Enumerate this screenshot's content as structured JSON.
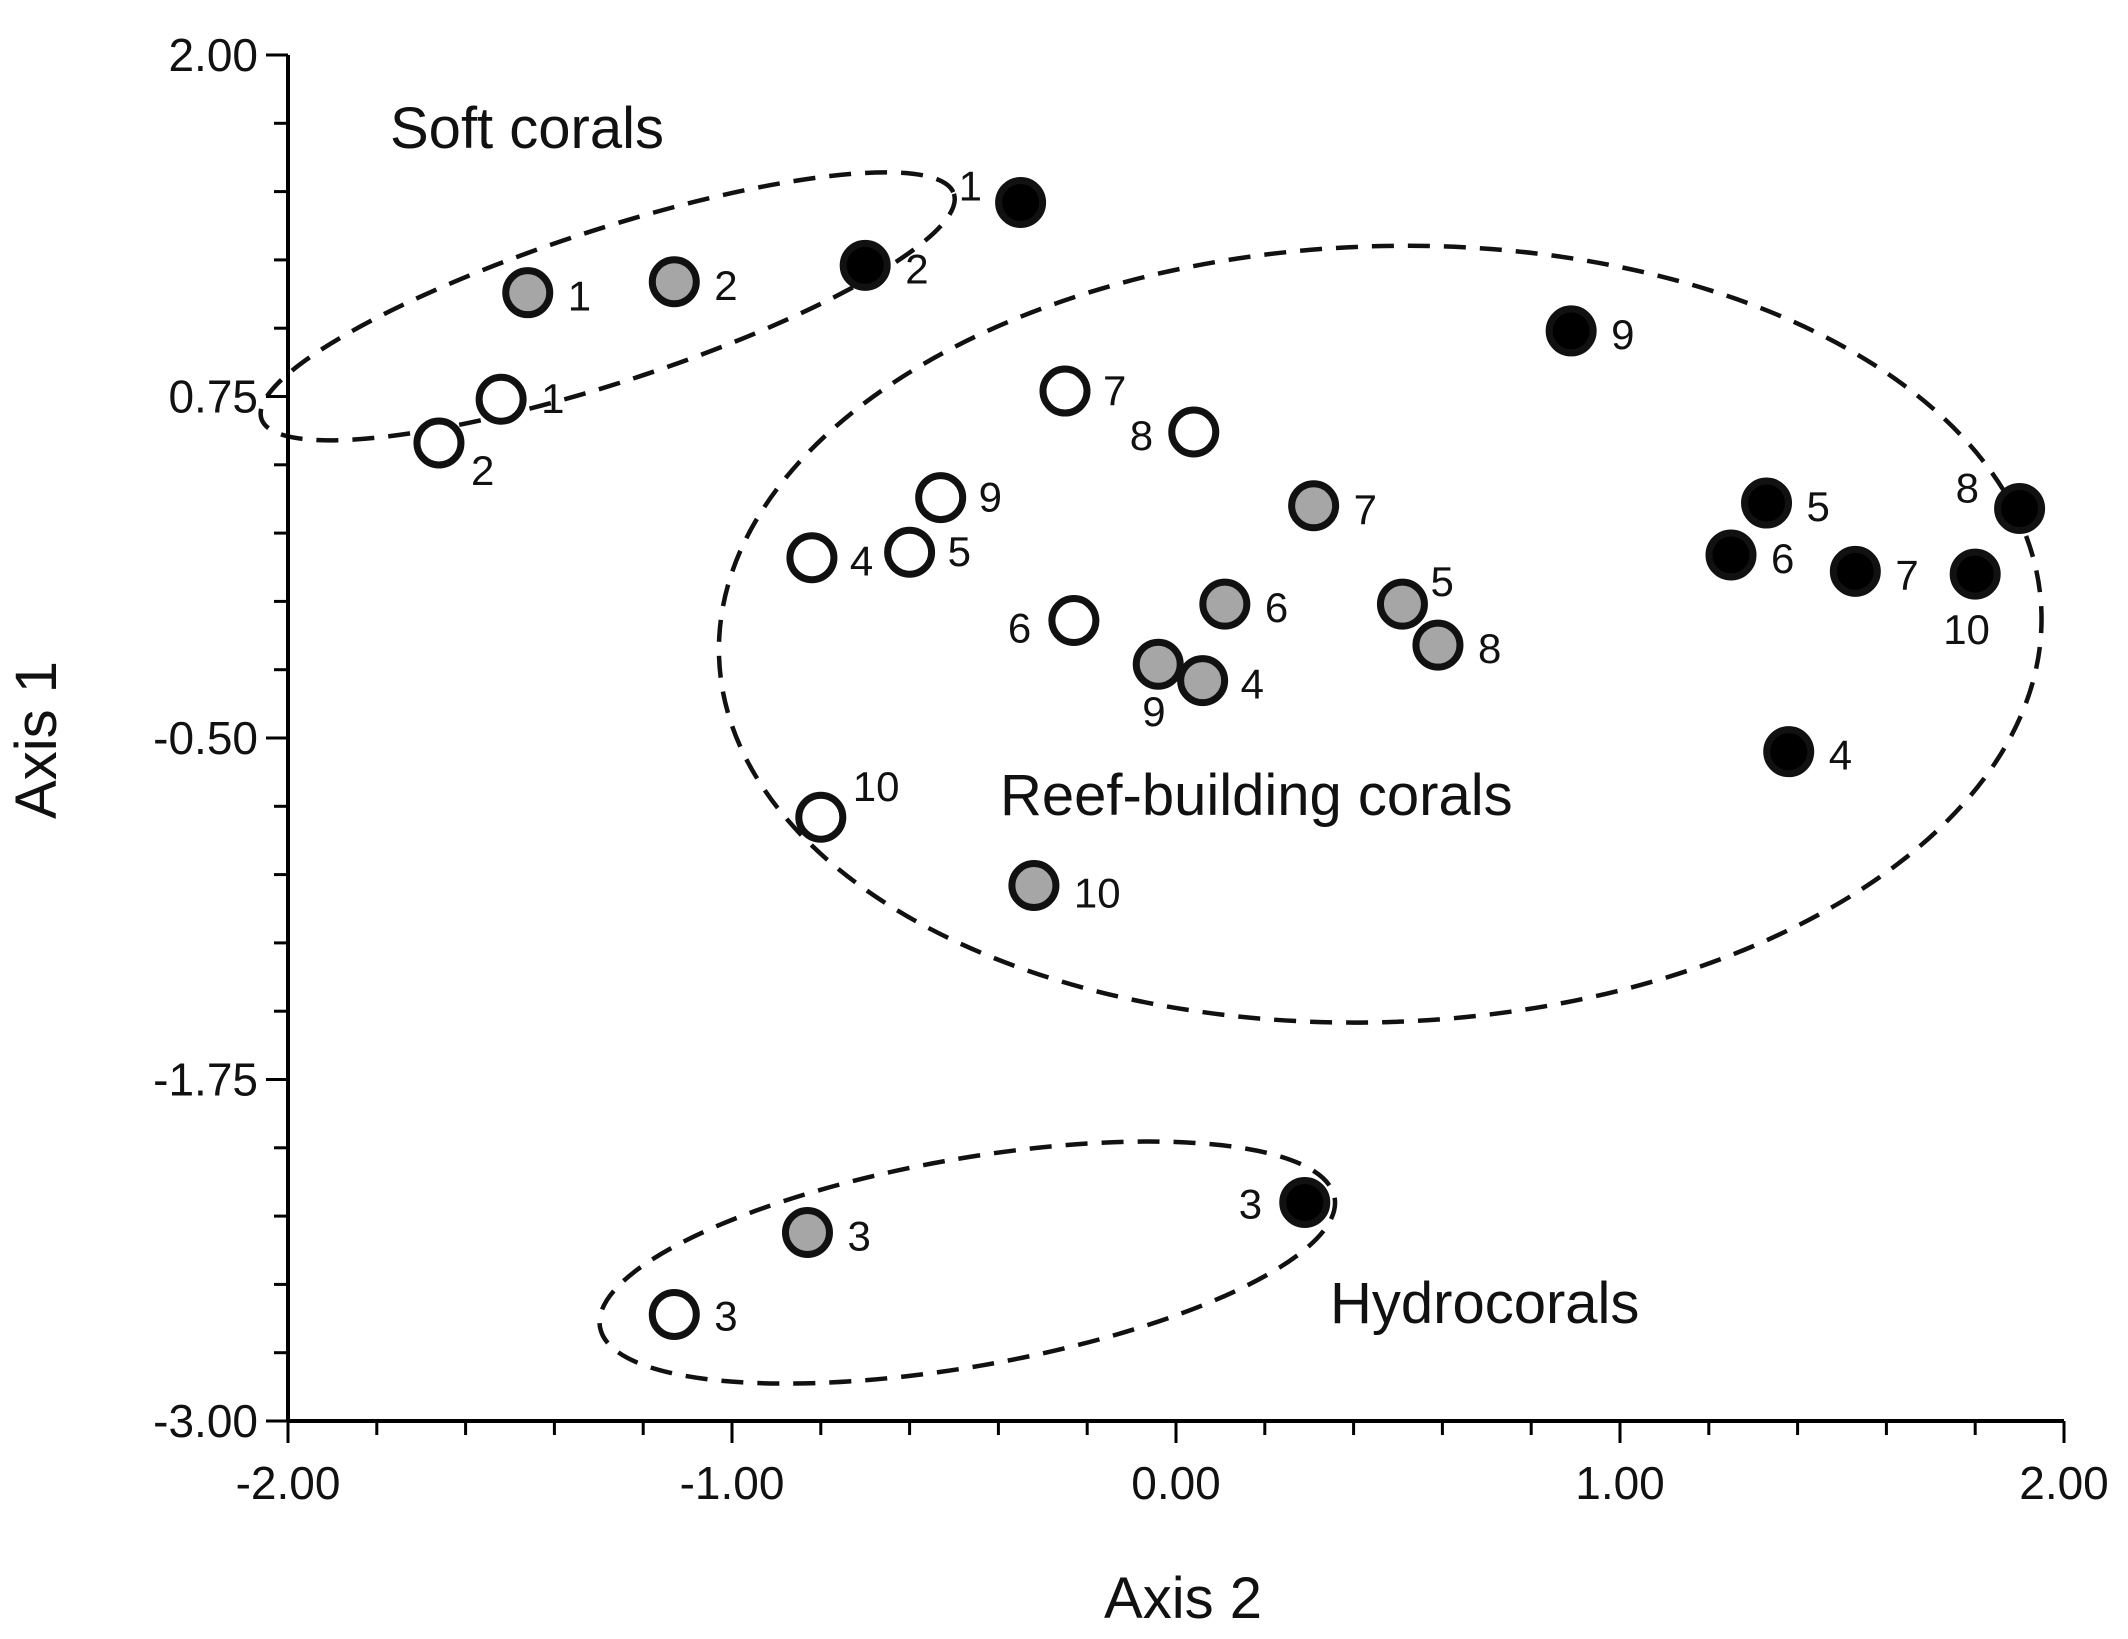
{
  "chart_data": {
    "type": "scatter",
    "title": "",
    "xlabel": "Axis 2",
    "ylabel": "Axis 1",
    "xlim": [
      -2.0,
      2.0
    ],
    "ylim": [
      -3.0,
      2.0
    ],
    "x_ticks": [
      "-2.00",
      "-1.00",
      "0.00",
      "1.00",
      "2.00"
    ],
    "y_ticks": [
      "2.00",
      "0.75",
      "-0.50",
      "-1.75",
      "-3.00"
    ],
    "x_tick_values": [
      -2.0,
      -1.0,
      0.0,
      1.0,
      2.0
    ],
    "y_tick_values": [
      2.0,
      0.75,
      -0.5,
      -1.75,
      -3.0
    ],
    "colors": {
      "white": "#ffffff",
      "gray": "#a6a6a6",
      "black": "#000000"
    },
    "series": [
      {
        "name": "white",
        "color": "#ffffff",
        "points": [
          {
            "label": "1",
            "x": -1.52,
            "y": 0.74
          },
          {
            "label": "2",
            "x": -1.66,
            "y": 0.58
          },
          {
            "label": "3",
            "x": -1.13,
            "y": -2.61
          },
          {
            "label": "4",
            "x": -0.82,
            "y": 0.16
          },
          {
            "label": "5",
            "x": -0.6,
            "y": 0.18
          },
          {
            "label": "6",
            "x": -0.23,
            "y": -0.07
          },
          {
            "label": "7",
            "x": -0.25,
            "y": 0.77
          },
          {
            "label": "8",
            "x": 0.04,
            "y": 0.62
          },
          {
            "label": "9",
            "x": -0.53,
            "y": 0.38
          },
          {
            "label": "10",
            "x": -0.8,
            "y": -0.79
          }
        ]
      },
      {
        "name": "gray",
        "color": "#a6a6a6",
        "points": [
          {
            "label": "1",
            "x": -1.46,
            "y": 1.13
          },
          {
            "label": "2",
            "x": -1.13,
            "y": 1.17
          },
          {
            "label": "3",
            "x": -0.83,
            "y": -2.31
          },
          {
            "label": "4",
            "x": 0.06,
            "y": -0.29
          },
          {
            "label": "5",
            "x": 0.51,
            "y": -0.01
          },
          {
            "label": "6",
            "x": 0.11,
            "y": -0.01
          },
          {
            "label": "7",
            "x": 0.31,
            "y": 0.35
          },
          {
            "label": "8",
            "x": 0.59,
            "y": -0.16
          },
          {
            "label": "9",
            "x": -0.04,
            "y": -0.23
          },
          {
            "label": "10",
            "x": -0.32,
            "y": -1.04
          }
        ]
      },
      {
        "name": "black",
        "color": "#000000",
        "points": [
          {
            "label": "1",
            "x": -0.35,
            "y": 1.46
          },
          {
            "label": "2",
            "x": -0.7,
            "y": 1.23
          },
          {
            "label": "3",
            "x": 0.29,
            "y": -2.2
          },
          {
            "label": "4",
            "x": 1.38,
            "y": -0.55
          },
          {
            "label": "5",
            "x": 1.33,
            "y": 0.36
          },
          {
            "label": "6",
            "x": 1.25,
            "y": 0.17
          },
          {
            "label": "7",
            "x": 1.53,
            "y": 0.11
          },
          {
            "label": "8",
            "x": 1.9,
            "y": 0.34
          },
          {
            "label": "9",
            "x": 0.89,
            "y": 0.99
          },
          {
            "label": "10",
            "x": 1.8,
            "y": 0.1
          }
        ]
      }
    ],
    "groups": [
      {
        "name": "Soft corals",
        "cx": -1.28,
        "cy": 1.08,
        "rx": 0.82,
        "ry": 0.28,
        "angle_deg": -18
      },
      {
        "name": "Reef-building corals",
        "cx": 0.46,
        "cy": -0.12,
        "rx": 1.49,
        "ry": 1.42,
        "angle_deg": -2
      },
      {
        "name": "Hydrocorals",
        "cx": -0.47,
        "cy": -2.42,
        "rx": 0.84,
        "ry": 0.38,
        "angle_deg": -10
      }
    ]
  }
}
